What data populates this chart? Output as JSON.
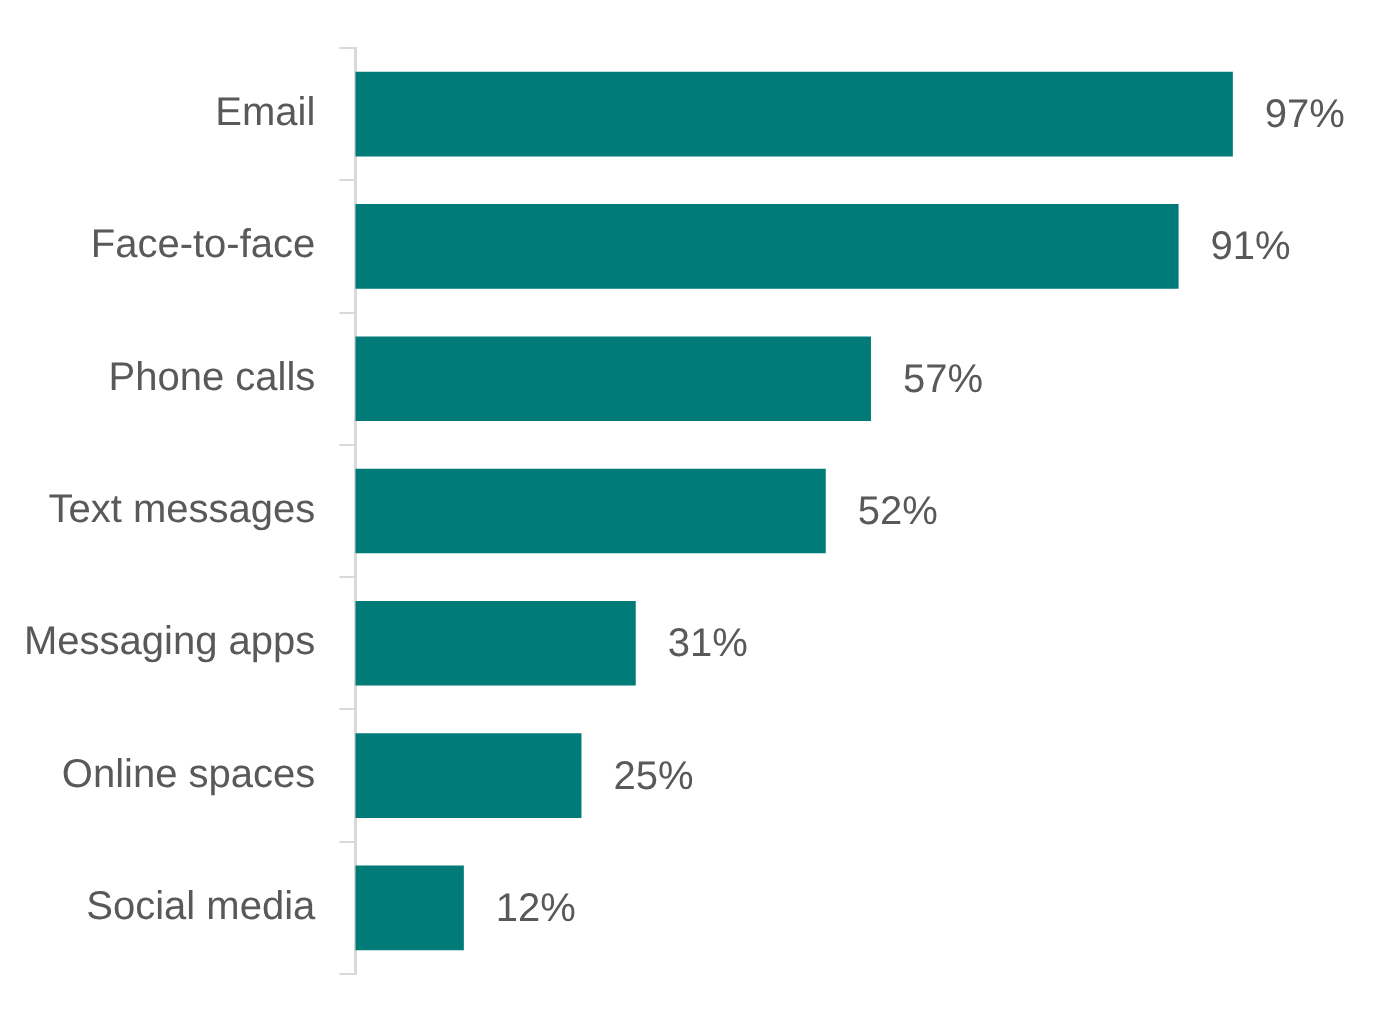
{
  "chart_data": {
    "type": "bar",
    "orientation": "horizontal",
    "categories": [
      "Email",
      "Face-to-face",
      "Phone calls",
      "Text messages",
      "Messaging apps",
      "Online spaces",
      "Social media"
    ],
    "values": [
      97,
      91,
      57,
      52,
      31,
      25,
      12
    ],
    "value_labels": [
      "97%",
      "91%",
      "57%",
      "52%",
      "31%",
      "25%",
      "12%"
    ],
    "color": "#007b78",
    "grid": false,
    "legend": false,
    "tick_labels": "y"
  }
}
